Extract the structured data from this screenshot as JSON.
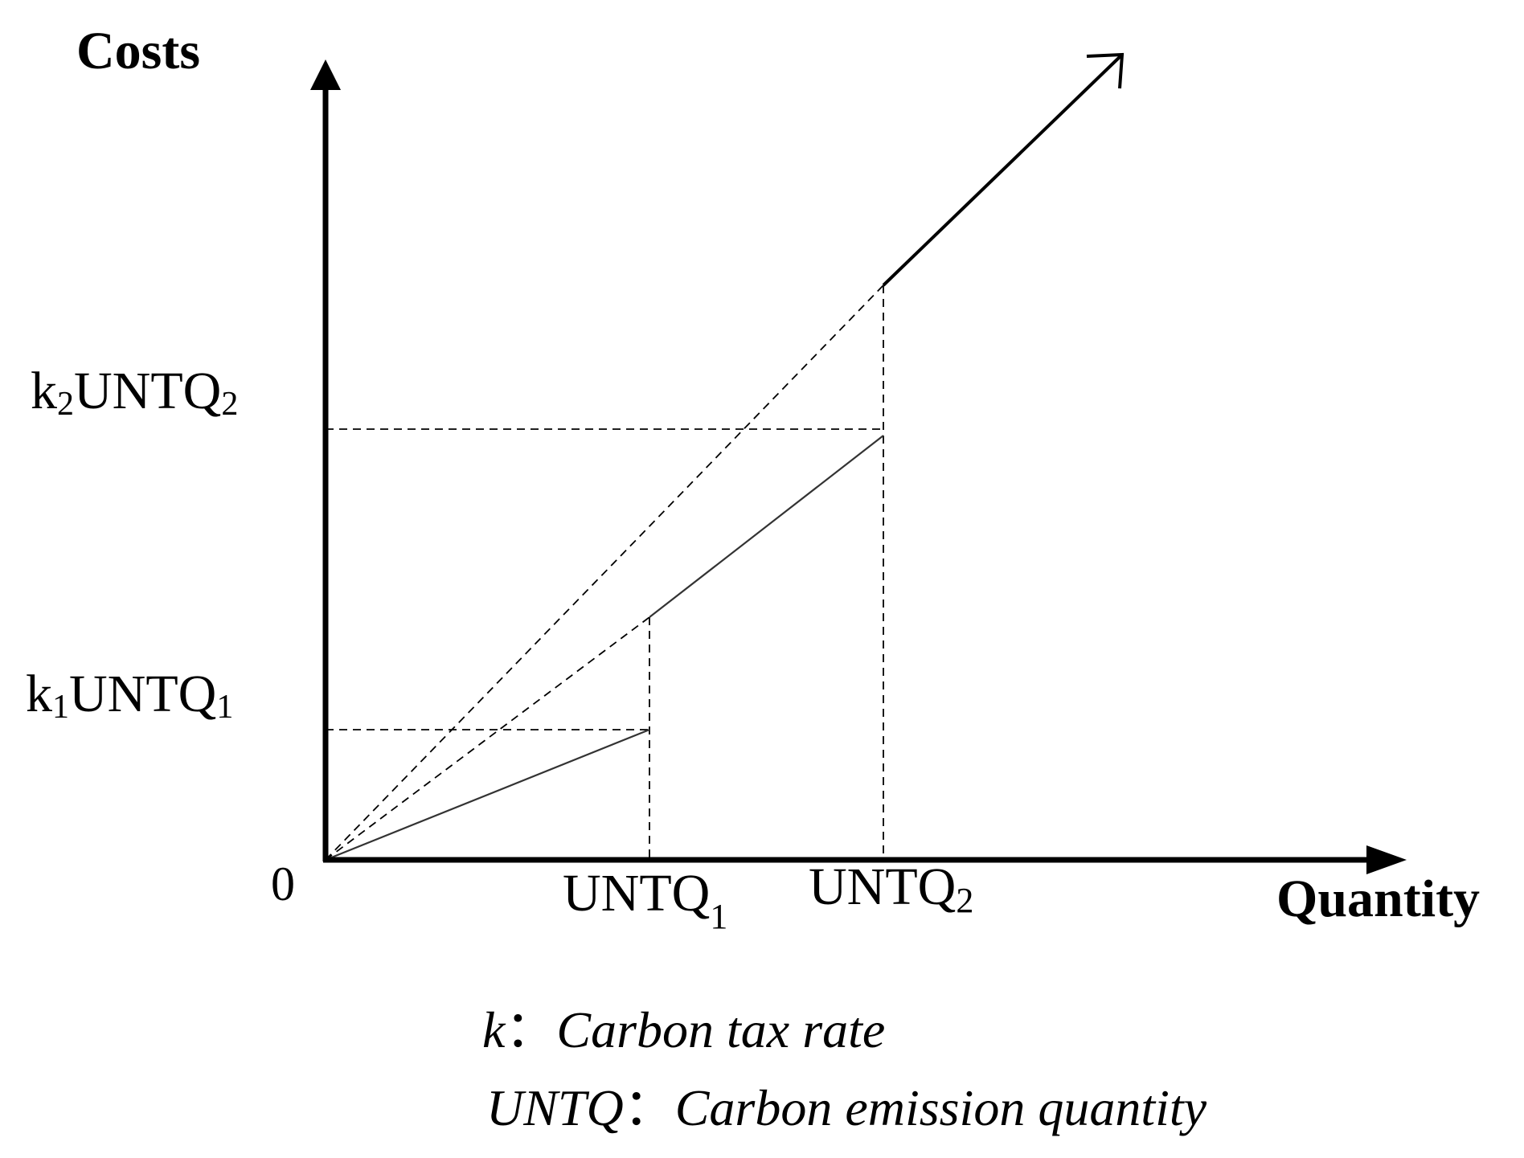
{
  "axes": {
    "y_label": "Costs",
    "x_label": "Quantity",
    "origin_label": "0"
  },
  "y_ticks": {
    "k1": {
      "prefix": "k",
      "sub": "1",
      "body": "UNTQ",
      "sub2": "1"
    },
    "k2": {
      "prefix": "k",
      "sub": "2",
      "body": "UNTQ",
      "sub2": "2"
    }
  },
  "x_ticks": {
    "q1": {
      "body": "UNTQ",
      "sub": "1"
    },
    "q2": {
      "body": "UNTQ",
      "sub": "2"
    }
  },
  "legend": {
    "k_symbol": "k",
    "k_sep": "：",
    "k_desc": "Carbon tax rate",
    "untq_symbol": "UNTQ",
    "untq_sep": "：",
    "untq_desc": "Carbon emission quantity"
  },
  "colors": {
    "line": "#000000",
    "background": "#ffffff"
  }
}
